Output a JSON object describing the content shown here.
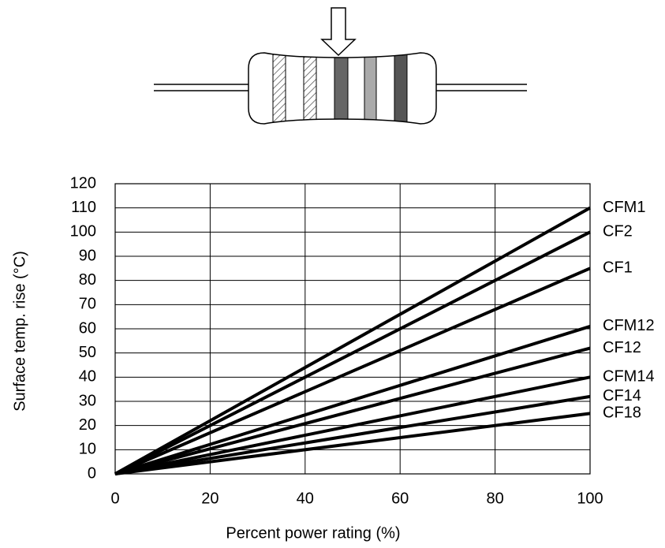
{
  "chart_data": {
    "type": "line",
    "xlabel": "Percent power rating (%)",
    "ylabel": "Surface temp. rise (°C)",
    "x": [
      0,
      100
    ],
    "series": [
      {
        "name": "CFM1",
        "color": "#000000",
        "values": [
          0,
          110
        ]
      },
      {
        "name": "CF2",
        "color": "#000000",
        "values": [
          0,
          100
        ]
      },
      {
        "name": "CF1",
        "color": "#000000",
        "values": [
          0,
          85
        ]
      },
      {
        "name": "CFM12",
        "color": "#000000",
        "values": [
          0,
          61
        ]
      },
      {
        "name": "CF12",
        "color": "#000000",
        "values": [
          0,
          52
        ]
      },
      {
        "name": "CFM14",
        "color": "#000000",
        "values": [
          0,
          40
        ]
      },
      {
        "name": "CF14",
        "color": "#000000",
        "values": [
          0,
          32
        ]
      },
      {
        "name": "CF18",
        "color": "#000000",
        "values": [
          0,
          25
        ]
      }
    ],
    "xlim": [
      0,
      100
    ],
    "xticks": [
      0,
      20,
      40,
      60,
      80,
      100
    ],
    "ylim": [
      0,
      120
    ],
    "yticks": [
      0,
      10,
      20,
      30,
      40,
      50,
      60,
      70,
      80,
      90,
      100,
      110,
      120
    ],
    "grid": true
  }
}
